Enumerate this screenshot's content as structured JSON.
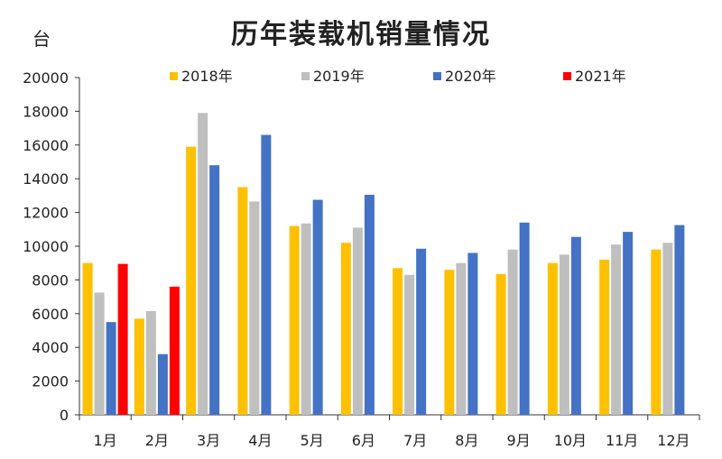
{
  "chart_data": {
    "type": "bar",
    "title": "历年装载机销量情况",
    "ylabel": "台",
    "xlabel": "",
    "ylim": [
      0,
      20000
    ],
    "yticks": [
      0,
      2000,
      4000,
      6000,
      8000,
      10000,
      12000,
      14000,
      16000,
      18000,
      20000
    ],
    "grid": false,
    "legend_position": "top",
    "categories": [
      "1月",
      "2月",
      "3月",
      "4月",
      "5月",
      "6月",
      "7月",
      "8月",
      "9月",
      "10月",
      "11月",
      "12月"
    ],
    "series": [
      {
        "name": "2018年",
        "color": "#FFC000",
        "values": [
          9000,
          5700,
          15900,
          13500,
          11200,
          10200,
          8700,
          8600,
          8350,
          9000,
          9200,
          9800
        ]
      },
      {
        "name": "2019年",
        "color": "#BFBFBF",
        "values": [
          7250,
          6150,
          17900,
          12650,
          11350,
          11100,
          8300,
          9000,
          9800,
          9500,
          10100,
          10200
        ]
      },
      {
        "name": "2020年",
        "color": "#4472C4",
        "values": [
          5500,
          3600,
          14800,
          16600,
          12750,
          13050,
          9850,
          9600,
          11400,
          10550,
          10850,
          11250
        ]
      },
      {
        "name": "2021年",
        "color": "#FF0000",
        "values": [
          8950,
          7600,
          null,
          null,
          null,
          null,
          null,
          null,
          null,
          null,
          null,
          null
        ]
      }
    ]
  }
}
